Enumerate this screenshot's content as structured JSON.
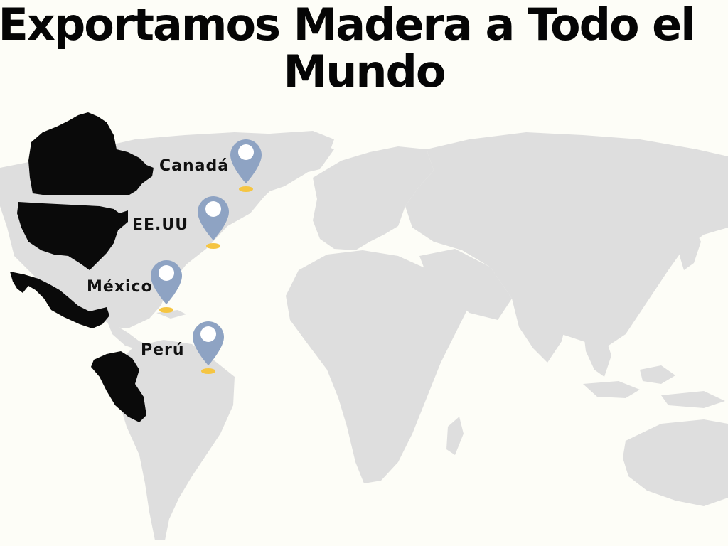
{
  "title": {
    "line1": "Exportamos Madera a Todo el",
    "line2": "Mundo"
  },
  "countries": [
    {
      "name": "Canadá"
    },
    {
      "name": "EE.UU"
    },
    {
      "name": "México"
    },
    {
      "name": "Perú"
    }
  ],
  "colors": {
    "background": "#fdfdf7",
    "land": "#dedede",
    "highlight": "#0a0a0a",
    "pin": "#8ea3c3",
    "pin_base": "#f5c542"
  },
  "icons": {
    "pin": "map-pin-icon"
  }
}
